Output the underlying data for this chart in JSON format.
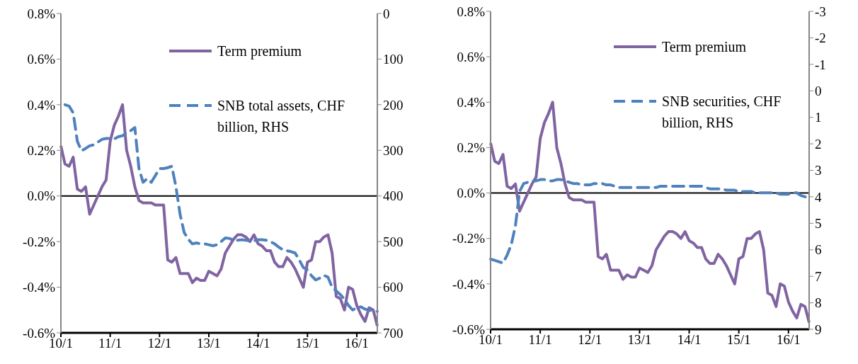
{
  "chart_data": [
    {
      "type": "line",
      "categories": [
        "10/1",
        null,
        null,
        null,
        null,
        null,
        null,
        null,
        null,
        null,
        null,
        null,
        "11/1",
        null,
        null,
        null,
        null,
        null,
        null,
        null,
        null,
        null,
        null,
        null,
        "12/1",
        null,
        null,
        null,
        null,
        null,
        null,
        null,
        null,
        null,
        null,
        null,
        "13/1",
        null,
        null,
        null,
        null,
        null,
        null,
        null,
        null,
        null,
        null,
        null,
        "14/1",
        null,
        null,
        null,
        null,
        null,
        null,
        null,
        null,
        null,
        null,
        null,
        "15/1",
        null,
        null,
        null,
        null,
        null,
        null,
        null,
        null,
        null,
        null,
        null,
        "16/1",
        null,
        null,
        null,
        null,
        null
      ],
      "series": [
        {
          "name": "Term premium",
          "color": "#8064a2",
          "line_style": "solid",
          "values": [
            0.22,
            0.14,
            0.13,
            0.17,
            0.03,
            0.02,
            0.04,
            -0.08,
            -0.04,
            0.0,
            0.04,
            0.07,
            0.24,
            0.31,
            0.35,
            0.4,
            0.2,
            0.13,
            0.04,
            -0.02,
            -0.03,
            -0.03,
            -0.03,
            -0.04,
            -0.04,
            -0.04,
            -0.28,
            -0.29,
            -0.27,
            -0.34,
            -0.34,
            -0.34,
            -0.38,
            -0.36,
            -0.37,
            -0.37,
            -0.33,
            -0.34,
            -0.35,
            -0.32,
            -0.25,
            -0.22,
            -0.19,
            -0.17,
            -0.17,
            -0.18,
            -0.2,
            -0.17,
            -0.21,
            -0.22,
            -0.24,
            -0.24,
            -0.29,
            -0.31,
            -0.31,
            -0.27,
            -0.29,
            -0.32,
            -0.36,
            -0.4,
            -0.29,
            -0.28,
            -0.2,
            -0.2,
            -0.18,
            -0.17,
            -0.25,
            -0.44,
            -0.45,
            -0.5,
            -0.4,
            -0.41,
            -0.48,
            -0.52,
            -0.55,
            -0.49,
            -0.5,
            -0.57
          ]
        },
        {
          "name": "SNB total assets, CHF billion, RHS",
          "color": "#4f81bd",
          "line_style": "dashed",
          "axis": "y2",
          "values": [
            null,
            200,
            203,
            218,
            280,
            301,
            296,
            290,
            288,
            282,
            276,
            274,
            274,
            275,
            270,
            268,
            262,
            257,
            250,
            340,
            370,
            362,
            370,
            355,
            340,
            340,
            338,
            335,
            380,
            440,
            480,
            495,
            505,
            503,
            505,
            505,
            507,
            509,
            507,
            500,
            492,
            493,
            497,
            497,
            496,
            497,
            498,
            498,
            496,
            496,
            497,
            500,
            505,
            512,
            518,
            520,
            522,
            525,
            540,
            557,
            562,
            575,
            584,
            580,
            574,
            578,
            600,
            608,
            616,
            626,
            640,
            650,
            645,
            643,
            648,
            650,
            652,
            653
          ]
        }
      ],
      "ylim": [
        -0.6,
        0.8
      ],
      "yticks": [
        {
          "value": -0.6,
          "label": "-0.6%"
        },
        {
          "value": -0.4,
          "label": "-0.4%"
        },
        {
          "value": -0.2,
          "label": "-0.2%"
        },
        {
          "value": 0,
          "label": "0.0%"
        },
        {
          "value": 0.2,
          "label": "0.2%"
        },
        {
          "value": 0.4,
          "label": "0.4%"
        },
        {
          "value": 0.6,
          "label": "0.6%"
        },
        {
          "value": 0.8,
          "label": "0.8%"
        }
      ],
      "y2lim": [
        700,
        0
      ],
      "y2ticks": [
        0,
        100,
        200,
        300,
        400,
        500,
        600,
        700
      ],
      "ref_lines": [
        {
          "axis": "y",
          "value": 0,
          "color": "#000000"
        }
      ],
      "legend": "top right",
      "grid": false
    },
    {
      "type": "line",
      "categories": [
        "10/1",
        null,
        null,
        null,
        null,
        null,
        null,
        null,
        null,
        null,
        null,
        null,
        "11/1",
        null,
        null,
        null,
        null,
        null,
        null,
        null,
        null,
        null,
        null,
        null,
        "12/1",
        null,
        null,
        null,
        null,
        null,
        null,
        null,
        null,
        null,
        null,
        null,
        "13/1",
        null,
        null,
        null,
        null,
        null,
        null,
        null,
        null,
        null,
        null,
        null,
        "14/1",
        null,
        null,
        null,
        null,
        null,
        null,
        null,
        null,
        null,
        null,
        null,
        "15/1",
        null,
        null,
        null,
        null,
        null,
        null,
        null,
        null,
        null,
        null,
        null,
        "16/1",
        null,
        null,
        null,
        null,
        null
      ],
      "series": [
        {
          "name": "Term premium",
          "color": "#8064a2",
          "line_style": "solid",
          "values": [
            0.22,
            0.14,
            0.13,
            0.17,
            0.03,
            0.02,
            0.04,
            -0.08,
            -0.04,
            0.0,
            0.04,
            0.07,
            0.24,
            0.31,
            0.35,
            0.4,
            0.2,
            0.13,
            0.04,
            -0.02,
            -0.03,
            -0.03,
            -0.03,
            -0.04,
            -0.04,
            -0.04,
            -0.28,
            -0.29,
            -0.27,
            -0.34,
            -0.34,
            -0.34,
            -0.38,
            -0.36,
            -0.37,
            -0.37,
            -0.33,
            -0.34,
            -0.35,
            -0.32,
            -0.25,
            -0.22,
            -0.19,
            -0.17,
            -0.17,
            -0.18,
            -0.2,
            -0.17,
            -0.21,
            -0.22,
            -0.24,
            -0.24,
            -0.29,
            -0.31,
            -0.31,
            -0.27,
            -0.29,
            -0.32,
            -0.36,
            -0.4,
            -0.29,
            -0.28,
            -0.2,
            -0.2,
            -0.18,
            -0.17,
            -0.25,
            -0.44,
            -0.45,
            -0.5,
            -0.4,
            -0.41,
            -0.48,
            -0.52,
            -0.55,
            -0.49,
            -0.5,
            -0.57
          ]
        },
        {
          "name": "SNB securities, CHF billion, RHS",
          "color": "#4f81bd",
          "line_style": "dashed",
          "axis": "y2",
          "values": [
            6.35,
            6.4,
            6.45,
            6.5,
            6.2,
            5.8,
            5.1,
            3.8,
            3.5,
            3.45,
            3.4,
            3.4,
            3.35,
            3.35,
            3.4,
            3.4,
            3.35,
            3.35,
            3.4,
            3.45,
            3.5,
            3.5,
            3.55,
            3.55,
            3.55,
            3.5,
            3.5,
            3.5,
            3.55,
            3.55,
            3.6,
            3.65,
            3.65,
            3.65,
            3.65,
            3.65,
            3.65,
            3.65,
            3.65,
            3.65,
            3.65,
            3.6,
            3.6,
            3.6,
            3.6,
            3.6,
            3.6,
            3.6,
            3.6,
            3.6,
            3.6,
            3.6,
            3.65,
            3.7,
            3.7,
            3.7,
            3.7,
            3.75,
            3.75,
            3.75,
            3.8,
            3.8,
            3.8,
            3.8,
            3.85,
            3.85,
            3.85,
            3.85,
            3.85,
            3.85,
            3.9,
            3.9,
            3.9,
            3.85,
            3.85,
            3.95,
            4.0,
            4.0
          ]
        }
      ],
      "ylim": [
        -0.6,
        0.8
      ],
      "yticks": [
        {
          "value": -0.6,
          "label": "-0.6%"
        },
        {
          "value": -0.4,
          "label": "-0.4%"
        },
        {
          "value": -0.2,
          "label": "-0.2%"
        },
        {
          "value": 0,
          "label": "0.0%"
        },
        {
          "value": 0.2,
          "label": "0.2%"
        },
        {
          "value": 0.4,
          "label": "0.4%"
        },
        {
          "value": 0.6,
          "label": "0.6%"
        },
        {
          "value": 0.8,
          "label": "0.8%"
        }
      ],
      "y2lim": [
        9,
        -3
      ],
      "y2ticks": [
        -3,
        -2,
        -1,
        0,
        1,
        2,
        3,
        4,
        5,
        6,
        7,
        8,
        9
      ],
      "ref_lines": [
        {
          "axis": "y",
          "value": 0,
          "color": "#000000"
        }
      ],
      "legend": "top right",
      "grid": false
    }
  ]
}
